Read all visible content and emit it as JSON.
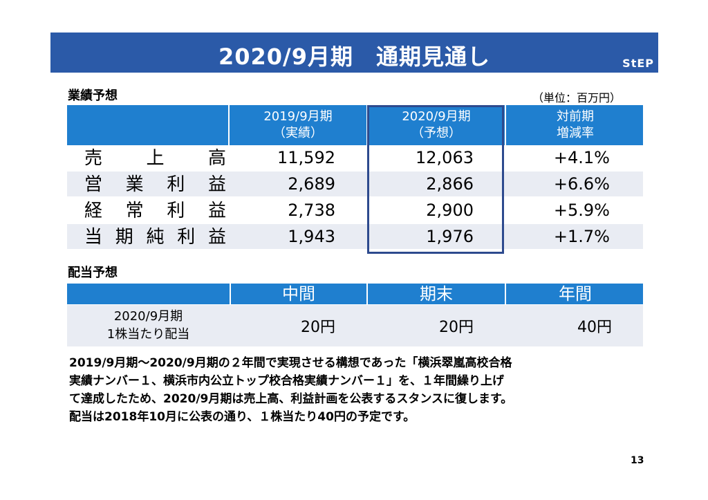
{
  "header": {
    "title": "2020/9月期　通期見通し",
    "logo": "StEP"
  },
  "performance": {
    "section_label": "業績予想",
    "unit": "（単位：百万円）",
    "columns": [
      {
        "line1": "2019/9月期",
        "line2": "（実績）"
      },
      {
        "line1": "2020/9月期",
        "line2": "（予想）"
      },
      {
        "line1": "対前期",
        "line2": "増減率"
      }
    ],
    "rows": [
      {
        "label": "売上高",
        "actual_2019": "11,592",
        "forecast_2020": "12,063",
        "change": "+4.1%"
      },
      {
        "label": "営業利益",
        "actual_2019": "2,689",
        "forecast_2020": "2,866",
        "change": "+6.6%"
      },
      {
        "label": "経常利益",
        "actual_2019": "2,738",
        "forecast_2020": "2,900",
        "change": "+5.9%"
      },
      {
        "label": "当期純利益",
        "actual_2019": "1,943",
        "forecast_2020": "1,976",
        "change": "+1.7%"
      }
    ]
  },
  "dividend": {
    "section_label": "配当予想",
    "columns": [
      "中間",
      "期末",
      "年間"
    ],
    "row_label_line1": "2020/9月期",
    "row_label_line2": "1株当たり配当",
    "values": [
      "20円",
      "20円",
      "40円"
    ]
  },
  "note_lines": [
    "2019/9月期～2020/9月期の２年間で実現させる構想であった「横浜翠嵐高校合格",
    "実績ナンバー１、横浜市内公立トップ校合格実績ナンバー１」を、１年間繰り上げ",
    "て達成したため、2020/9月期は売上高、利益計画を公表するスタンスに復します。",
    "配当は2018年10月に公表の通り、１株当たり40円の予定です。"
  ],
  "page_number": "13"
}
